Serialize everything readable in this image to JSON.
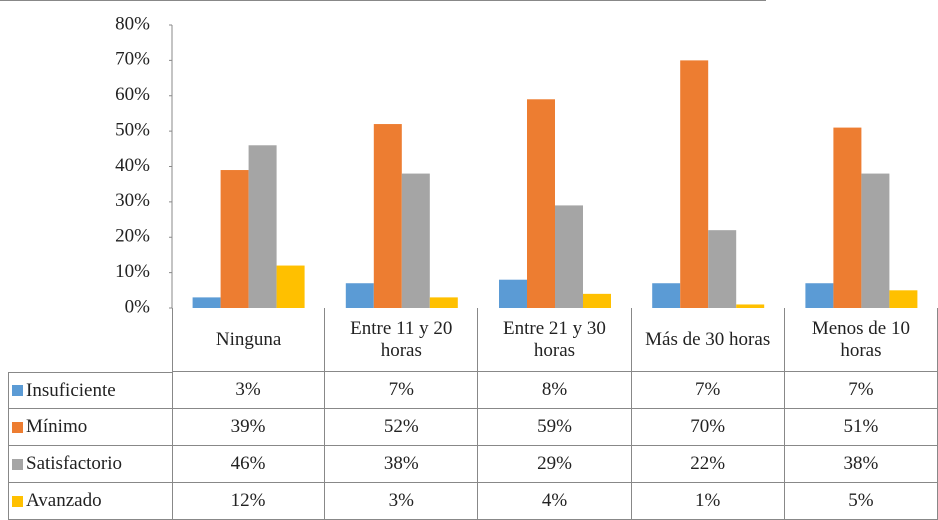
{
  "chart_data": {
    "type": "bar",
    "categories": [
      "Ninguna",
      "Entre 11 y 20 horas",
      "Entre 21 y 30 horas",
      "Más de 30 horas",
      "Menos de 10 horas"
    ],
    "series": [
      {
        "name": "Insuficiente",
        "color": "#5b9bd5",
        "values": [
          3,
          7,
          8,
          7,
          7
        ],
        "value_labels": [
          "3%",
          "7%",
          "8%",
          "7%",
          "7%"
        ]
      },
      {
        "name": "Mínimo",
        "color": "#ed7d31",
        "values": [
          39,
          52,
          59,
          70,
          51
        ],
        "value_labels": [
          "39%",
          "52%",
          "59%",
          "70%",
          "51%"
        ]
      },
      {
        "name": "Satisfactorio",
        "color": "#a5a5a5",
        "values": [
          46,
          38,
          29,
          22,
          38
        ],
        "value_labels": [
          "46%",
          "38%",
          "29%",
          "22%",
          "38%"
        ]
      },
      {
        "name": "Avanzado",
        "color": "#ffc000",
        "values": [
          12,
          3,
          4,
          1,
          5
        ],
        "value_labels": [
          "12%",
          "3%",
          "4%",
          "1%",
          "5%"
        ]
      }
    ],
    "ylim": [
      0,
      80
    ],
    "yticks": [
      {
        "value": 0,
        "label": "0%"
      },
      {
        "value": 10,
        "label": "10%"
      },
      {
        "value": 20,
        "label": "20%"
      },
      {
        "value": 30,
        "label": "30%"
      },
      {
        "value": 40,
        "label": "40%"
      },
      {
        "value": 50,
        "label": "50%"
      },
      {
        "value": 60,
        "label": "60%"
      },
      {
        "value": 70,
        "label": "70%"
      },
      {
        "value": 80,
        "label": "80%"
      }
    ],
    "grid": false,
    "data_table": true
  }
}
